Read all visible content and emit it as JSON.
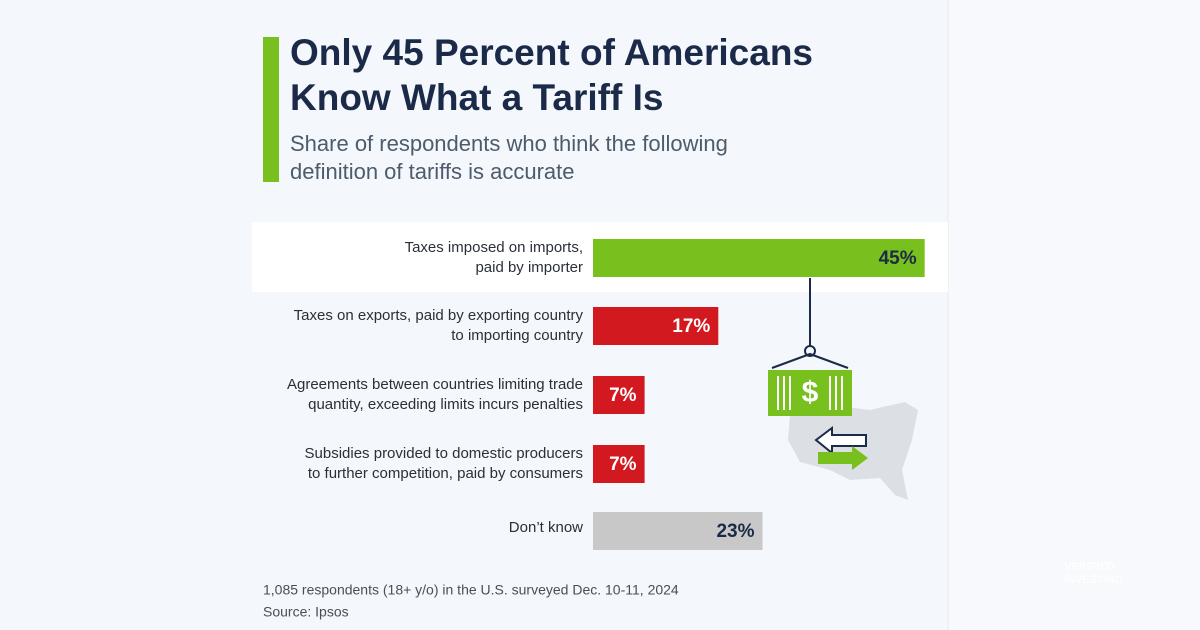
{
  "chart_data": {
    "type": "bar",
    "title": [
      "Only 45 Percent of Americans",
      "Know What a Tariff Is"
    ],
    "subtitle": [
      "Share of respondents who think the following",
      "definition of tariffs is accurate"
    ],
    "categories": [
      [
        "Taxes imposed on imports,",
        "paid by importer"
      ],
      [
        "Taxes on exports, paid by exporting country",
        "to importing country"
      ],
      [
        "Agreements between countries limiting trade",
        "quantity, exceeding limits incurs penalties"
      ],
      [
        "Subsidies provided to domestic producers",
        "to further competition, paid by consumers"
      ],
      [
        "Don’t know"
      ]
    ],
    "values": [
      45,
      17,
      7,
      7,
      23
    ],
    "value_labels": [
      "45%",
      "17%",
      "7%",
      "7%",
      "23%"
    ],
    "colors": [
      "#77c01e",
      "#d1191f",
      "#d1191f",
      "#d1191f",
      "#c8c8c8"
    ],
    "value_label_colors": [
      "#1b2a48",
      "#ffffff",
      "#ffffff",
      "#ffffff",
      "#1b2a48"
    ],
    "note": "1,085 respondents (18+ y/o) in the U.S. surveyed Dec. 10-11, 2024",
    "source": "Source: Ipsos",
    "watermark": [
      "VERIFIED",
      "INVESTING"
    ]
  }
}
